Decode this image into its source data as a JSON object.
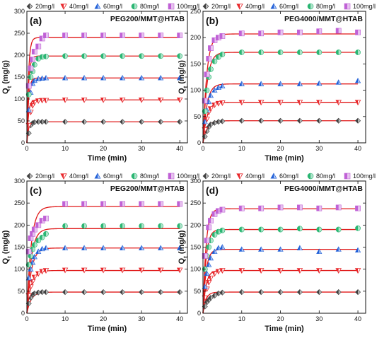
{
  "chart_data": [
    {
      "type": "scatter",
      "panel_label": "(a)",
      "title": "PEG200/MMT@HTAB",
      "xlabel": "Time (min)",
      "ylabel": "Qt (mg/g)",
      "ylabel_main": "Q",
      "ylabel_sub": "t",
      "ylabel_unit": " (mg/g)",
      "xlim": [
        0,
        42
      ],
      "ylim": [
        0,
        300
      ],
      "xticks": [
        0,
        10,
        20,
        30,
        40
      ],
      "yticks": [
        0,
        50,
        100,
        150,
        200,
        250,
        300
      ],
      "legend_position": "top-outside",
      "series": [
        {
          "name": "20mg/l",
          "marker": "diamond-half",
          "color": "#404040",
          "x": [
            0.5,
            1,
            1.5,
            2,
            3,
            4,
            5,
            10,
            15,
            20,
            25,
            30,
            35,
            40
          ],
          "y": [
            22,
            40,
            45,
            47,
            48,
            48,
            48,
            48,
            48,
            48,
            48,
            48,
            48,
            48
          ],
          "fit": {
            "qe": 48,
            "k": 2.4
          }
        },
        {
          "name": "40mg/l",
          "marker": "triangle-down-half",
          "color": "#e8262a",
          "x": [
            0.5,
            1,
            1.5,
            2,
            3,
            4,
            5,
            10,
            15,
            20,
            25,
            30,
            35,
            40
          ],
          "y": [
            40,
            70,
            85,
            92,
            96,
            97,
            97,
            98,
            98,
            98,
            98,
            98,
            98,
            98
          ],
          "fit": {
            "qe": 98,
            "k": 2.4
          }
        },
        {
          "name": "60mg/l",
          "marker": "triangle-up-half",
          "color": "#1f5fd8",
          "x": [
            0.5,
            1,
            1.5,
            2,
            3,
            4,
            5,
            10,
            15,
            20,
            25,
            30,
            35,
            40
          ],
          "y": [
            75,
            115,
            135,
            142,
            146,
            147,
            148,
            148,
            148,
            148,
            148,
            148,
            148,
            148
          ],
          "fit": {
            "qe": 148,
            "k": 2.4
          }
        },
        {
          "name": "80mg/l",
          "marker": "circle-half",
          "color": "#2bb673",
          "x": [
            0.5,
            1,
            1.5,
            2,
            3,
            4,
            5,
            10,
            15,
            20,
            25,
            30,
            35,
            40
          ],
          "y": [
            110,
            150,
            163,
            178,
            192,
            196,
            197,
            198,
            198,
            198,
            198,
            198,
            198,
            198
          ],
          "fit": {
            "qe": 198,
            "k": 2.4
          }
        },
        {
          "name": "100mg/l",
          "marker": "square-half",
          "color": "#c061d6",
          "x": [
            0.5,
            1,
            1.5,
            2,
            3,
            4,
            5,
            10,
            15,
            20,
            25,
            30,
            35,
            40
          ],
          "y": [
            130,
            170,
            190,
            208,
            220,
            238,
            245,
            245,
            245,
            245,
            245,
            245,
            245,
            245
          ],
          "fit": {
            "qe": 240,
            "k": 2.4
          }
        }
      ]
    },
    {
      "type": "scatter",
      "panel_label": "(b)",
      "title": "PEG4000/MMT@HTAB",
      "xlabel": "Time (min)",
      "ylabel": "Qt (mg/g)",
      "ylabel_main": "Q",
      "ylabel_sub": "t",
      "ylabel_unit": " (mg/g)",
      "xlim": [
        0,
        42
      ],
      "ylim": [
        0,
        250
      ],
      "xticks": [
        0,
        10,
        20,
        30,
        40
      ],
      "yticks": [
        0,
        50,
        100,
        150,
        200,
        250
      ],
      "legend_position": "top-outside",
      "series": [
        {
          "name": "20mg/l",
          "marker": "diamond-half",
          "color": "#404040",
          "x": [
            0.5,
            1,
            1.5,
            2,
            3,
            4,
            5,
            10,
            15,
            20,
            25,
            30,
            35,
            40
          ],
          "y": [
            12,
            22,
            30,
            35,
            38,
            40,
            41,
            42,
            42,
            42,
            42,
            42,
            42,
            42
          ],
          "fit": {
            "qe": 42,
            "k": 1.0
          }
        },
        {
          "name": "40mg/l",
          "marker": "triangle-down-half",
          "color": "#e8262a",
          "x": [
            0.5,
            1,
            1.5,
            2,
            3,
            4,
            5,
            10,
            15,
            20,
            25,
            30,
            35,
            40
          ],
          "y": [
            25,
            45,
            58,
            65,
            72,
            75,
            76,
            77,
            77,
            77,
            77,
            77,
            77,
            77
          ],
          "fit": {
            "qe": 77,
            "k": 1.0
          }
        },
        {
          "name": "60mg/l",
          "marker": "triangle-up-half",
          "color": "#1f5fd8",
          "x": [
            0.5,
            1,
            1.5,
            2,
            3,
            4,
            5,
            10,
            15,
            20,
            25,
            30,
            35,
            40
          ],
          "y": [
            40,
            62,
            78,
            90,
            100,
            105,
            108,
            112,
            112,
            112,
            112,
            113,
            115,
            118
          ],
          "fit": {
            "qe": 112,
            "k": 1.0
          }
        },
        {
          "name": "80mg/l",
          "marker": "circle-half",
          "color": "#2bb673",
          "x": [
            0.5,
            1,
            1.5,
            2,
            3,
            4,
            5,
            10,
            15,
            20,
            25,
            30,
            35,
            40
          ],
          "y": [
            60,
            100,
            125,
            140,
            155,
            163,
            168,
            172,
            172,
            172,
            172,
            172,
            172,
            172
          ],
          "fit": {
            "qe": 172,
            "k": 1.0
          }
        },
        {
          "name": "100mg/l",
          "marker": "square-half",
          "color": "#c061d6",
          "x": [
            0.5,
            1,
            1.5,
            2,
            3,
            4,
            5,
            10,
            15,
            20,
            25,
            30,
            35,
            40
          ],
          "y": [
            80,
            130,
            160,
            180,
            195,
            200,
            203,
            208,
            208,
            210,
            210,
            212,
            213,
            210
          ],
          "fit": {
            "qe": 207,
            "k": 1.0
          }
        }
      ]
    },
    {
      "type": "scatter",
      "panel_label": "(c)",
      "title": "PEG200/MMT@HTAB",
      "xlabel": "Time (min)",
      "ylabel": "Qt (mg/g)",
      "ylabel_main": "Q",
      "ylabel_sub": "t",
      "ylabel_unit": " (mg/g)",
      "xlim": [
        0,
        42
      ],
      "ylim": [
        0,
        300
      ],
      "xticks": [
        0,
        10,
        20,
        30,
        40
      ],
      "yticks": [
        0,
        50,
        100,
        150,
        200,
        250,
        300
      ],
      "legend_position": "top-outside",
      "series": [
        {
          "name": "20mg/l",
          "marker": "diamond-half",
          "color": "#404040",
          "x": [
            0.5,
            1,
            1.5,
            2,
            3,
            4,
            5,
            10,
            15,
            20,
            25,
            30,
            35,
            40
          ],
          "y": [
            22,
            35,
            42,
            45,
            47,
            48,
            48,
            48,
            48,
            48,
            48,
            48,
            48,
            48
          ],
          "fit": {
            "qe": 48,
            "k": 0.9
          }
        },
        {
          "name": "40mg/l",
          "marker": "triangle-down-half",
          "color": "#e8262a",
          "x": [
            0.5,
            1,
            1.5,
            2,
            3,
            4,
            5,
            10,
            15,
            20,
            25,
            30,
            35,
            40
          ],
          "y": [
            40,
            60,
            72,
            82,
            90,
            95,
            97,
            98,
            98,
            98,
            98,
            98,
            98,
            98
          ],
          "fit": {
            "qe": 97,
            "k": 0.9
          }
        },
        {
          "name": "60mg/l",
          "marker": "triangle-up-half",
          "color": "#1f5fd8",
          "x": [
            0.5,
            1,
            1.5,
            2,
            3,
            4,
            5,
            10,
            15,
            20,
            25,
            30,
            35,
            40
          ],
          "y": [
            80,
            100,
            115,
            128,
            140,
            146,
            148,
            148,
            148,
            148,
            148,
            148,
            148,
            148
          ],
          "fit": {
            "qe": 148,
            "k": 0.9
          }
        },
        {
          "name": "80mg/l",
          "marker": "circle-half",
          "color": "#2bb673",
          "x": [
            0.5,
            1,
            1.5,
            2,
            3,
            4,
            5,
            10,
            15,
            20,
            25,
            30,
            35,
            40
          ],
          "y": [
            110,
            130,
            145,
            155,
            165,
            172,
            180,
            198,
            198,
            198,
            198,
            198,
            198,
            198
          ],
          "fit": {
            "qe": 192,
            "k": 0.9
          }
        },
        {
          "name": "100mg/l",
          "marker": "square-half",
          "color": "#c061d6",
          "x": [
            0.5,
            1,
            1.5,
            2,
            3,
            4,
            5,
            10,
            15,
            20,
            25,
            30,
            35,
            40
          ],
          "y": [
            140,
            170,
            180,
            190,
            200,
            210,
            215,
            248,
            248,
            248,
            248,
            248,
            248,
            248
          ],
          "fit": {
            "qe": 242,
            "k": 0.9
          }
        }
      ]
    },
    {
      "type": "scatter",
      "panel_label": "(d)",
      "title": "PEG4000/MMT@HTAB",
      "xlabel": "Time (min)",
      "ylabel": "Qt (mg/g)",
      "ylabel_main": "Q",
      "ylabel_sub": "t",
      "ylabel_unit": " (mg/g)",
      "xlim": [
        0,
        42
      ],
      "ylim": [
        0,
        300
      ],
      "xticks": [
        0,
        10,
        20,
        30,
        40
      ],
      "yticks": [
        0,
        50,
        100,
        150,
        200,
        250,
        300
      ],
      "legend_position": "top-outside",
      "series": [
        {
          "name": "20mg/l",
          "marker": "diamond-half",
          "color": "#404040",
          "x": [
            0.5,
            1,
            1.5,
            2,
            3,
            4,
            5,
            10,
            15,
            20,
            25,
            30,
            35,
            40
          ],
          "y": [
            15,
            25,
            30,
            35,
            40,
            45,
            47,
            48,
            48,
            48,
            48,
            48,
            48,
            48
          ],
          "fit": {
            "qe": 48,
            "k": 1.3
          }
        },
        {
          "name": "40mg/l",
          "marker": "triangle-down-half",
          "color": "#e8262a",
          "x": [
            0.5,
            1,
            1.5,
            2,
            3,
            4,
            5,
            10,
            15,
            20,
            25,
            30,
            35,
            40
          ],
          "y": [
            35,
            55,
            70,
            80,
            90,
            95,
            97,
            97,
            97,
            97,
            97,
            97,
            97,
            97
          ],
          "fit": {
            "qe": 97,
            "k": 1.3
          }
        },
        {
          "name": "60mg/l",
          "marker": "triangle-up-half",
          "color": "#1f5fd8",
          "x": [
            0.5,
            1,
            1.5,
            2,
            3,
            4,
            5,
            10,
            15,
            20,
            25,
            30,
            35,
            40
          ],
          "y": [
            60,
            90,
            110,
            125,
            140,
            148,
            150,
            145,
            145,
            145,
            148,
            140,
            145,
            143
          ],
          "fit": {
            "qe": 145,
            "k": 1.3
          }
        },
        {
          "name": "80mg/l",
          "marker": "circle-half",
          "color": "#2bb673",
          "x": [
            0.5,
            1,
            1.5,
            2,
            3,
            4,
            5,
            10,
            15,
            20,
            25,
            30,
            35,
            40
          ],
          "y": [
            100,
            130,
            150,
            165,
            178,
            185,
            188,
            190,
            190,
            190,
            192,
            190,
            190,
            193
          ],
          "fit": {
            "qe": 190,
            "k": 1.3
          }
        },
        {
          "name": "100mg/l",
          "marker": "square-half",
          "color": "#c061d6",
          "x": [
            0.5,
            1,
            1.5,
            2,
            3,
            4,
            5,
            10,
            15,
            20,
            25,
            30,
            35,
            40
          ],
          "y": [
            130,
            165,
            195,
            210,
            225,
            232,
            235,
            238,
            238,
            240,
            240,
            238,
            240,
            238
          ],
          "fit": {
            "qe": 237,
            "k": 1.3
          }
        }
      ]
    }
  ]
}
